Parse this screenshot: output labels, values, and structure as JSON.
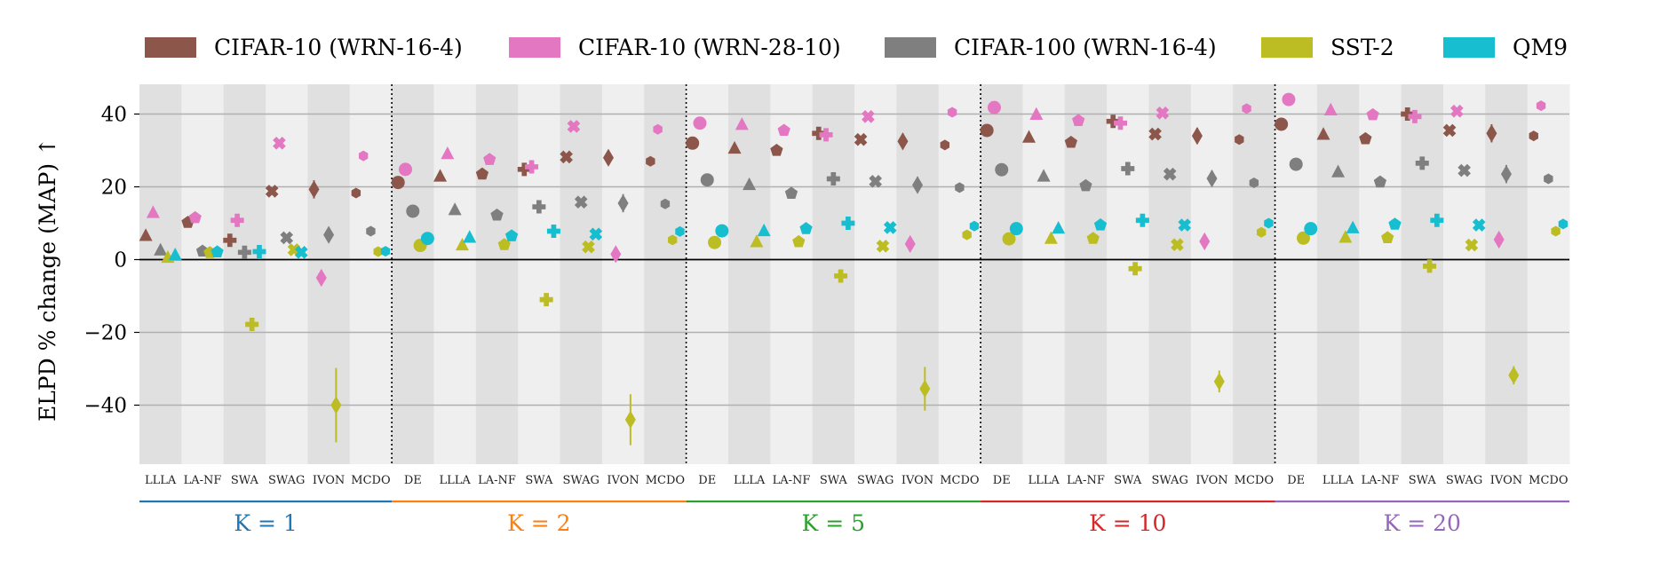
{
  "chart_data": {
    "type": "scatter",
    "ylabel": "ELPD % change (MAP) ↑",
    "yticks": [
      40,
      20,
      0,
      -20,
      -40
    ],
    "ytick_labels": [
      "40",
      "20",
      "0",
      "−20",
      "−40"
    ],
    "ylim": [
      -56,
      49
    ],
    "series": [
      {
        "name": "CIFAR-10 (WRN-16-4)",
        "color": "#8c564b"
      },
      {
        "name": "CIFAR-10 (WRN-28-10)",
        "color": "#e377c2"
      },
      {
        "name": "CIFAR-100 (WRN-16-4)",
        "color": "#7f7f7f"
      },
      {
        "name": "SST-2",
        "color": "#bcbd22"
      },
      {
        "name": "QM9",
        "color": "#17becf"
      }
    ],
    "method_markers": {
      "DE": "circle",
      "LLLA": "triangle",
      "LA-NF": "pentagon",
      "SWA": "plus",
      "SWAG": "x",
      "IVON": "diamond",
      "MCDO": "hexagon"
    },
    "groups": [
      {
        "label": "K = 1",
        "color": "#1f77b4",
        "methods": [
          "LLLA",
          "LA-NF",
          "SWA",
          "SWAG",
          "IVON",
          "MCDO"
        ],
        "values": [
          [
            6.5,
            12.8,
            2.5,
            0.5,
            1.2
          ],
          [
            10.2,
            11.5,
            2.3,
            1.9,
            2.1
          ],
          [
            5.3,
            10.8,
            2.0,
            -17.8,
            2.2
          ],
          [
            18.8,
            32.0,
            6.0,
            2.7,
            2.0
          ],
          [
            19.3,
            -5.0,
            6.8,
            -40.0,
            null
          ],
          [
            18.3,
            28.5,
            7.8,
            2.2,
            2.3
          ]
        ],
        "errors": [
          [
            0,
            0,
            0,
            0,
            0
          ],
          [
            0,
            0,
            0,
            0,
            0
          ],
          [
            0,
            0,
            0,
            1.8,
            0
          ],
          [
            0,
            0,
            0,
            0,
            0
          ],
          [
            2.5,
            2.2,
            0,
            10.2,
            0
          ],
          [
            0,
            0,
            0,
            0,
            0
          ]
        ]
      },
      {
        "label": "K = 2",
        "color": "#ff7f0e",
        "methods": [
          "DE",
          "LLLA",
          "LA-NF",
          "SWA",
          "SWAG",
          "IVON",
          "MCDO"
        ],
        "values": [
          [
            21.2,
            24.8,
            13.3,
            3.9,
            5.8
          ],
          [
            22.8,
            29.0,
            13.6,
            3.9,
            6.0
          ],
          [
            23.5,
            27.5,
            12.2,
            4.1,
            6.5
          ],
          [
            24.8,
            25.5,
            14.5,
            -11.0,
            7.8
          ],
          [
            28.2,
            36.6,
            15.8,
            3.5,
            7.0
          ],
          [
            28.0,
            1.5,
            15.5,
            -44.0,
            null
          ],
          [
            27.0,
            35.8,
            15.3,
            5.4,
            7.7
          ]
        ],
        "errors": [
          [
            0,
            0,
            0,
            0,
            0
          ],
          [
            0,
            0,
            0,
            0,
            0
          ],
          [
            0,
            0,
            0,
            0,
            0
          ],
          [
            0,
            0,
            0,
            1.5,
            0
          ],
          [
            0,
            0,
            0,
            0,
            0
          ],
          [
            2.0,
            2.0,
            2.5,
            7.0,
            0
          ],
          [
            0,
            0,
            0,
            0,
            0
          ]
        ]
      },
      {
        "label": "K = 5",
        "color": "#2ca02c",
        "methods": [
          "DE",
          "LLLA",
          "LA-NF",
          "SWA",
          "SWAG",
          "IVON",
          "MCDO"
        ],
        "values": [
          [
            32.0,
            37.5,
            21.9,
            4.7,
            7.9
          ],
          [
            30.5,
            37.0,
            20.5,
            4.8,
            7.8
          ],
          [
            30.0,
            35.5,
            18.2,
            4.9,
            8.5
          ],
          [
            34.7,
            34.3,
            22.2,
            -4.5,
            10.0
          ],
          [
            33.0,
            39.3,
            21.5,
            3.7,
            8.8
          ],
          [
            32.5,
            4.3,
            20.5,
            -35.5,
            null
          ],
          [
            31.5,
            40.5,
            19.8,
            6.8,
            9.2
          ]
        ],
        "errors": [
          [
            0,
            0,
            0,
            0,
            0
          ],
          [
            0,
            0,
            0,
            0,
            0
          ],
          [
            0,
            0,
            0,
            0,
            0
          ],
          [
            0,
            0,
            0,
            1.2,
            0
          ],
          [
            0,
            0,
            0,
            0,
            0
          ],
          [
            2.2,
            1.8,
            2.2,
            6.0,
            0
          ],
          [
            0,
            0,
            0,
            0,
            0
          ]
        ]
      },
      {
        "label": "K = 10",
        "color": "#d62728",
        "methods": [
          "DE",
          "LLLA",
          "LA-NF",
          "SWA",
          "SWAG",
          "IVON",
          "MCDO"
        ],
        "values": [
          [
            35.5,
            41.8,
            24.7,
            5.7,
            8.5
          ],
          [
            33.5,
            39.8,
            22.8,
            5.7,
            8.5
          ],
          [
            32.2,
            38.2,
            20.3,
            5.8,
            9.5
          ],
          [
            38.0,
            37.5,
            25.0,
            -2.5,
            10.8
          ],
          [
            34.5,
            40.3,
            23.5,
            4.1,
            9.5
          ],
          [
            34.0,
            5.0,
            22.3,
            -33.5,
            null
          ],
          [
            33.0,
            41.5,
            21.1,
            7.5,
            10.0
          ]
        ],
        "errors": [
          [
            0,
            0,
            0,
            0,
            0
          ],
          [
            0,
            0,
            0,
            0,
            0
          ],
          [
            0,
            0,
            0,
            0,
            0
          ],
          [
            0,
            0,
            0,
            1.0,
            0
          ],
          [
            0,
            0,
            0,
            0,
            0
          ],
          [
            2.2,
            1.8,
            2.2,
            3.0,
            0
          ],
          [
            0,
            0,
            0,
            0,
            0
          ]
        ]
      },
      {
        "label": "K = 20",
        "color": "#9467bd",
        "methods": [
          "DE",
          "LLLA",
          "LA-NF",
          "SWA",
          "SWAG",
          "IVON",
          "MCDO"
        ],
        "values": [
          [
            37.2,
            44.0,
            26.2,
            5.9,
            8.5
          ],
          [
            34.3,
            41.0,
            24.0,
            6.0,
            8.6
          ],
          [
            33.2,
            39.8,
            21.3,
            6.0,
            9.7
          ],
          [
            40.0,
            39.3,
            26.5,
            -1.8,
            10.8
          ],
          [
            35.5,
            40.8,
            24.5,
            4.0,
            9.5
          ],
          [
            34.7,
            5.5,
            23.5,
            -31.8,
            null
          ],
          [
            34.0,
            42.3,
            22.2,
            7.8,
            9.8
          ]
        ],
        "errors": [
          [
            0,
            0,
            0,
            0,
            0
          ],
          [
            0,
            0,
            0,
            0,
            0
          ],
          [
            0,
            0,
            0,
            0,
            0
          ],
          [
            0,
            0,
            0,
            1.0,
            0
          ],
          [
            0,
            0,
            0,
            0,
            0
          ],
          [
            2.5,
            1.8,
            2.5,
            2.5,
            0
          ],
          [
            0,
            0,
            0,
            0,
            0
          ]
        ]
      }
    ]
  }
}
